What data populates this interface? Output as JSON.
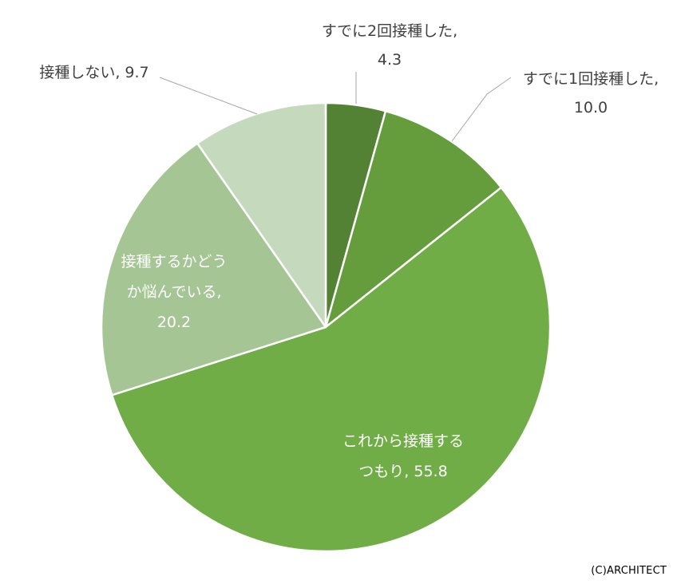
{
  "chart_data": {
    "type": "pie",
    "slices": [
      {
        "label": "すでに2回接種した",
        "value": 4.3,
        "color": "#548235",
        "text_lines": [
          "すでに2回接種した,",
          "4.3"
        ]
      },
      {
        "label": "すでに1回接種した",
        "value": 10.0,
        "color": "#659d3d",
        "text_lines": [
          "すでに1回接種した,",
          "10.0"
        ]
      },
      {
        "label": "これから接種するつもり",
        "value": 55.8,
        "color": "#70ad47",
        "text_lines": [
          "これから接種する",
          "つもり, 55.8"
        ]
      },
      {
        "label": "接種するかどうか悩んでいる",
        "value": 20.2,
        "color": "#a5c594",
        "text_lines": [
          "接種するかどう",
          "か悩んでいる,",
          "20.2"
        ]
      },
      {
        "label": "接種しない",
        "value": 9.7,
        "color": "#c5d9bd",
        "text_lines": [
          "接種しない, 9.7"
        ]
      }
    ]
  },
  "footer": {
    "copyright": "(C)ARCHITECT"
  }
}
